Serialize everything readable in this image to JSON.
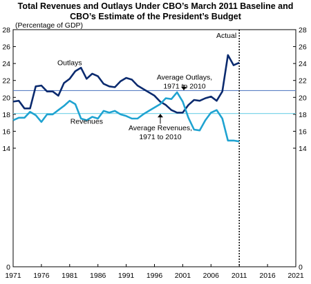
{
  "chart_data": {
    "type": "line",
    "title": "Total Revenues and Outlays Under CBO’s March 2011 Baseline and",
    "subtitle": "CBO’s Estimate of the President’s Budget",
    "ylabel": "(Percentage of GDP)",
    "xlim": [
      1971,
      2021
    ],
    "ylim": [
      0,
      28
    ],
    "x_ticks": [
      1971,
      1976,
      1981,
      1986,
      1991,
      1996,
      2001,
      2006,
      2011,
      2016,
      2021
    ],
    "y_ticks": [
      0,
      14,
      16,
      18,
      20,
      22,
      24,
      26,
      28
    ],
    "series": [
      {
        "name": "Outlays",
        "color": "#0a2a6e",
        "x": [
          1971,
          1972,
          1973,
          1974,
          1975,
          1976,
          1977,
          1978,
          1979,
          1980,
          1981,
          1982,
          1983,
          1984,
          1985,
          1986,
          1987,
          1988,
          1989,
          1990,
          1991,
          1992,
          1993,
          1994,
          1995,
          1996,
          1997,
          1998,
          1999,
          2000,
          2001,
          2002,
          2003,
          2004,
          2005,
          2006,
          2007,
          2008,
          2009,
          2010,
          2011
        ],
        "values": [
          19.5,
          19.6,
          18.7,
          18.7,
          21.3,
          21.4,
          20.7,
          20.7,
          20.2,
          21.7,
          22.2,
          23.1,
          23.5,
          22.2,
          22.8,
          22.5,
          21.6,
          21.3,
          21.2,
          21.9,
          22.3,
          22.1,
          21.4,
          21.0,
          20.6,
          20.2,
          19.5,
          19.1,
          18.5,
          18.2,
          18.2,
          19.1,
          19.7,
          19.6,
          19.9,
          20.1,
          19.6,
          20.7,
          25.0,
          23.8,
          24.1
        ]
      },
      {
        "name": "Revenues",
        "color": "#1fa3d1",
        "x": [
          1971,
          1972,
          1973,
          1974,
          1975,
          1976,
          1977,
          1978,
          1979,
          1980,
          1981,
          1982,
          1983,
          1984,
          1985,
          1986,
          1987,
          1988,
          1989,
          1990,
          1991,
          1992,
          1993,
          1994,
          1995,
          1996,
          1997,
          1998,
          1999,
          2000,
          2001,
          2002,
          2003,
          2004,
          2005,
          2006,
          2007,
          2008,
          2009,
          2010,
          2011
        ],
        "values": [
          17.3,
          17.6,
          17.6,
          18.3,
          17.9,
          17.1,
          18.0,
          18.0,
          18.5,
          19.0,
          19.6,
          19.2,
          17.5,
          17.3,
          17.7,
          17.5,
          18.4,
          18.2,
          18.4,
          18.0,
          17.8,
          17.5,
          17.5,
          18.0,
          18.4,
          18.8,
          19.2,
          19.9,
          19.8,
          20.6,
          19.5,
          17.6,
          16.2,
          16.1,
          17.3,
          18.2,
          18.5,
          17.5,
          14.9,
          14.9,
          14.8
        ]
      }
    ],
    "reference_lines": [
      {
        "label": "Average Outlays, 1971 to 2010",
        "line1": "Average Outlays,",
        "line2": "1971 to 2010",
        "value": 20.8,
        "color": "#5b7fc4"
      },
      {
        "label": "Average Revenues, 1971 to 2010",
        "line1": "Average Revenues,",
        "line2": "1971 to 2010",
        "value": 18.1,
        "color": "#7fd6ea"
      }
    ],
    "annotations": [
      {
        "text": "Outlays",
        "x": 1981,
        "y": 23.8
      },
      {
        "text": "Revenues",
        "x": 1984,
        "y": 16.9
      }
    ],
    "actual_marker": {
      "label": "Actual",
      "x": 2011
    }
  }
}
